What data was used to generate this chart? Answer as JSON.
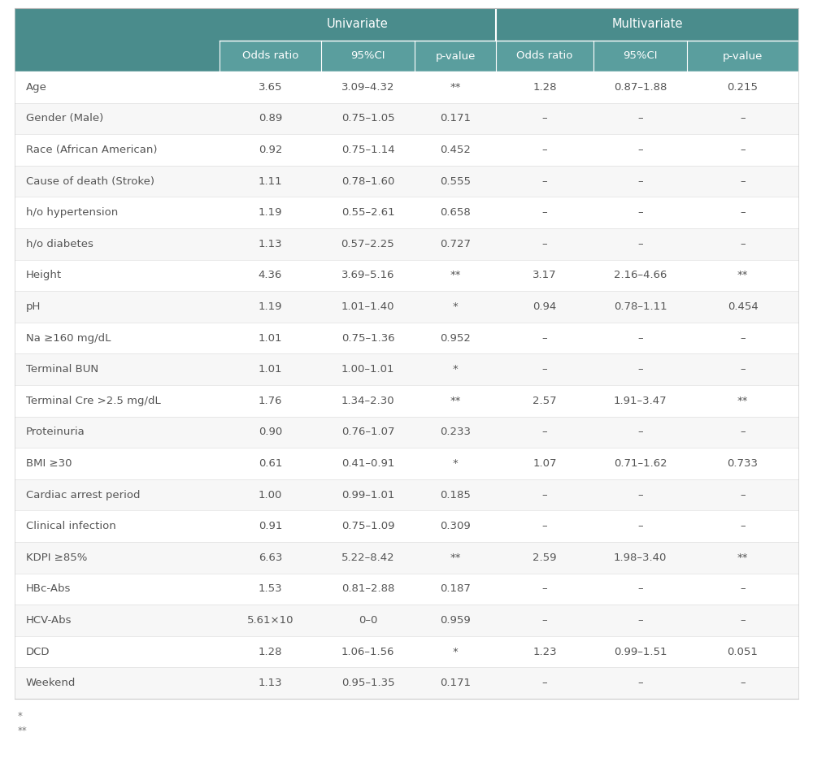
{
  "header_row2": [
    "",
    "Odds ratio",
    "95%CI",
    "p-value",
    "Odds ratio",
    "95%CI",
    "p-value"
  ],
  "rows": [
    [
      "Age",
      "3.65",
      "3.09–4.32",
      "**",
      "1.28",
      "0.87–1.88",
      "0.215"
    ],
    [
      "Gender (Male)",
      "0.89",
      "0.75–1.05",
      "0.171",
      "–",
      "–",
      "–"
    ],
    [
      "Race (African American)",
      "0.92",
      "0.75–1.14",
      "0.452",
      "–",
      "–",
      "–"
    ],
    [
      "Cause of death (Stroke)",
      "1.11",
      "0.78–1.60",
      "0.555",
      "–",
      "–",
      "–"
    ],
    [
      "h/o hypertension",
      "1.19",
      "0.55–2.61",
      "0.658",
      "–",
      "–",
      "–"
    ],
    [
      "h/o diabetes",
      "1.13",
      "0.57–2.25",
      "0.727",
      "–",
      "–",
      "–"
    ],
    [
      "Height",
      "4.36",
      "3.69–5.16",
      "**",
      "3.17",
      "2.16–4.66",
      "**"
    ],
    [
      "pH",
      "1.19",
      "1.01–1.40",
      "*",
      "0.94",
      "0.78–1.11",
      "0.454"
    ],
    [
      "Na ≥160 mg/dL",
      "1.01",
      "0.75–1.36",
      "0.952",
      "–",
      "–",
      "–"
    ],
    [
      "Terminal BUN",
      "1.01",
      "1.00–1.01",
      "*",
      "–",
      "–",
      "–"
    ],
    [
      "Terminal Cre >2.5 mg/dL",
      "1.76",
      "1.34–2.30",
      "**",
      "2.57",
      "1.91–3.47",
      "**"
    ],
    [
      "Proteinuria",
      "0.90",
      "0.76–1.07",
      "0.233",
      "–",
      "–",
      "–"
    ],
    [
      "BMI ≥30",
      "0.61",
      "0.41–0.91",
      "*",
      "1.07",
      "0.71–1.62",
      "0.733"
    ],
    [
      "Cardiac arrest period",
      "1.00",
      "0.99–1.01",
      "0.185",
      "–",
      "–",
      "–"
    ],
    [
      "Clinical infection",
      "0.91",
      "0.75–1.09",
      "0.309",
      "–",
      "–",
      "–"
    ],
    [
      "KDPI ≥85%",
      "6.63",
      "5.22–8.42",
      "**",
      "2.59",
      "1.98–3.40",
      "**"
    ],
    [
      "HBc-Abs",
      "1.53",
      "0.81–2.88",
      "0.187",
      "–",
      "–",
      "–"
    ],
    [
      "HCV-Abs",
      "5.61×10",
      "0–0",
      "0.959",
      "–",
      "–",
      "–"
    ],
    [
      "DCD",
      "1.28",
      "1.06–1.56",
      "*",
      "1.23",
      "0.99–1.51",
      "0.051"
    ],
    [
      "Weekend",
      "1.13",
      "0.95–1.35",
      "0.171",
      "–",
      "–",
      "–"
    ]
  ],
  "footnote1": "*",
  "footnote2": "**",
  "header_bg": "#4a8c8c",
  "subheader_bg": "#5a9e9e",
  "row_bg_light": "#f7f7f7",
  "row_bg_white": "#ffffff",
  "divider_color": "#e0e0e0",
  "header_text_color": "#ffffff",
  "body_text_color": "#555555",
  "figure_width": 10.0,
  "figure_height": 9.44
}
